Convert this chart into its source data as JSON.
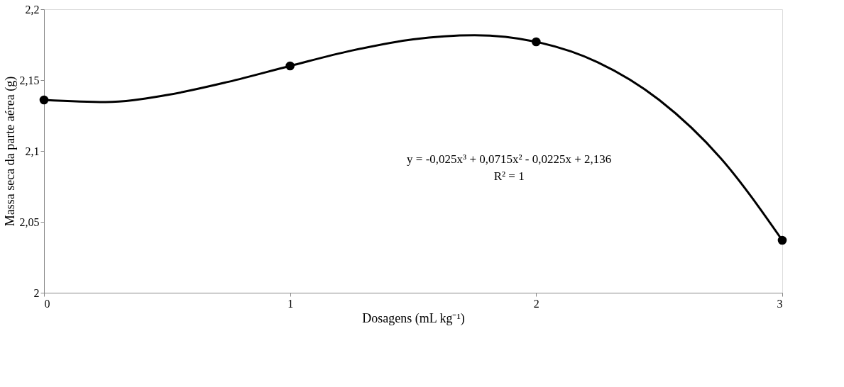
{
  "chart_data": {
    "type": "scatter",
    "xlabel": "Dosagens (mL kg⁻¹)",
    "ylabel": "Massa seca da parte aérea (g)",
    "xlim": [
      0,
      3
    ],
    "xticks": [
      0,
      1,
      2,
      3
    ],
    "ylim": [
      2,
      2.2
    ],
    "yticks": [
      {
        "value": 2,
        "label": "2"
      },
      {
        "value": 2.05,
        "label": "2,05"
      },
      {
        "value": 2.1,
        "label": "2,1"
      },
      {
        "value": 2.15,
        "label": "2,15"
      },
      {
        "value": 2.2,
        "label": "2,2"
      }
    ],
    "grid": false,
    "series": [
      {
        "type": "scatter",
        "color": "#000000",
        "marker": "circle",
        "x": [
          0,
          1,
          2,
          3
        ],
        "values": [
          2.136,
          2.16,
          2.177,
          2.037
        ]
      },
      {
        "type": "line",
        "color": "#000000",
        "marker": "none",
        "line_style": "solid",
        "x": [
          0,
          0.25,
          0.5,
          0.75,
          1,
          1.25,
          1.5,
          1.75,
          2,
          2.25,
          2.5,
          2.75,
          3
        ],
        "values": [
          2.136,
          2.1345,
          2.1395,
          2.1488,
          2.16,
          2.1708,
          2.1788,
          2.1816,
          2.177,
          2.1626,
          2.136,
          2.0949,
          2.037
        ]
      }
    ],
    "annotations": [
      "y = -0,025x³ + 0,0715x² - 0,0225x + 2,136",
      "R² = 1"
    ]
  }
}
